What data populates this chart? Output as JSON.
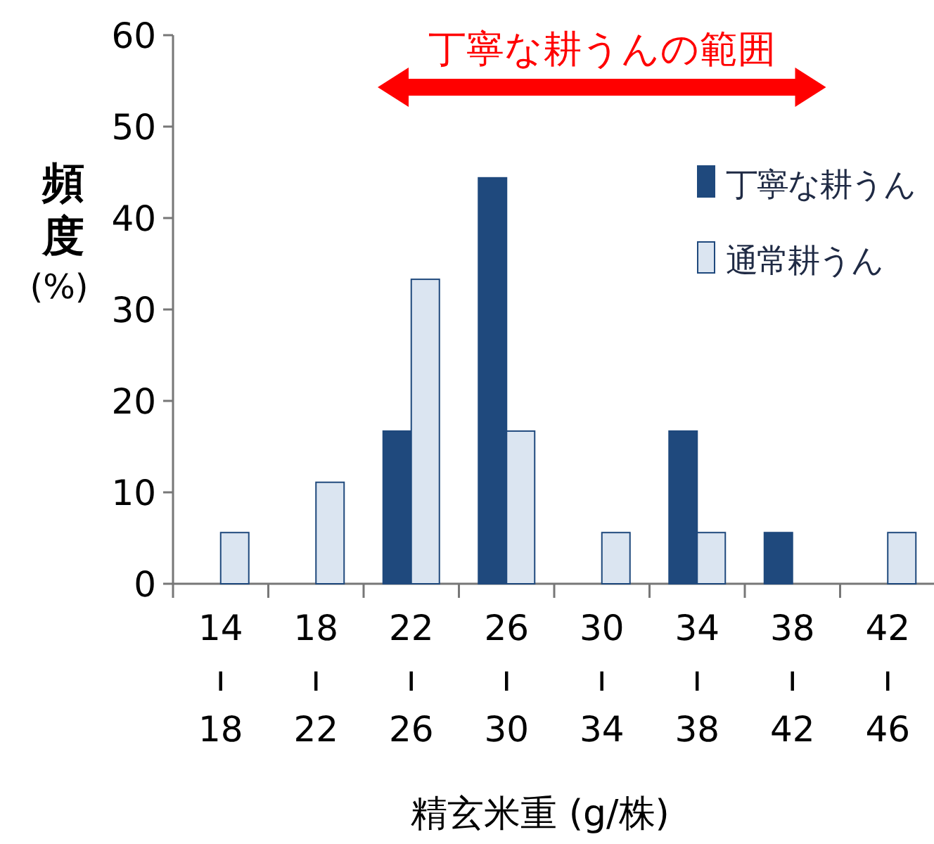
{
  "chart_data": {
    "type": "bar",
    "ylabel": "頻度\n(%)",
    "xlabel": "精玄米重 (g/株)",
    "categories": [
      "14\nı\n18",
      "18\nı\n22",
      "22\nı\n26",
      "26\nı\n30",
      "30\nı\n34",
      "34\nı\n38",
      "38\nı\n42",
      "42\nı\n46"
    ],
    "series": [
      {
        "name": "丁寧な耕うん",
        "color": "#1f497d",
        "values": [
          0,
          0,
          16.7,
          44.4,
          0,
          16.7,
          5.6,
          0
        ]
      },
      {
        "name": "通常耕うん",
        "color": "#dbe5f1",
        "values": [
          5.6,
          11.1,
          33.3,
          16.7,
          5.6,
          5.6,
          0,
          5.6
        ]
      }
    ],
    "ylim": [
      0,
      60
    ],
    "yticks": [
      0,
      10,
      20,
      30,
      40,
      50,
      60
    ],
    "legend": "top right",
    "grid": false,
    "annotations": [
      "丁寧な耕うんの範囲"
    ]
  }
}
